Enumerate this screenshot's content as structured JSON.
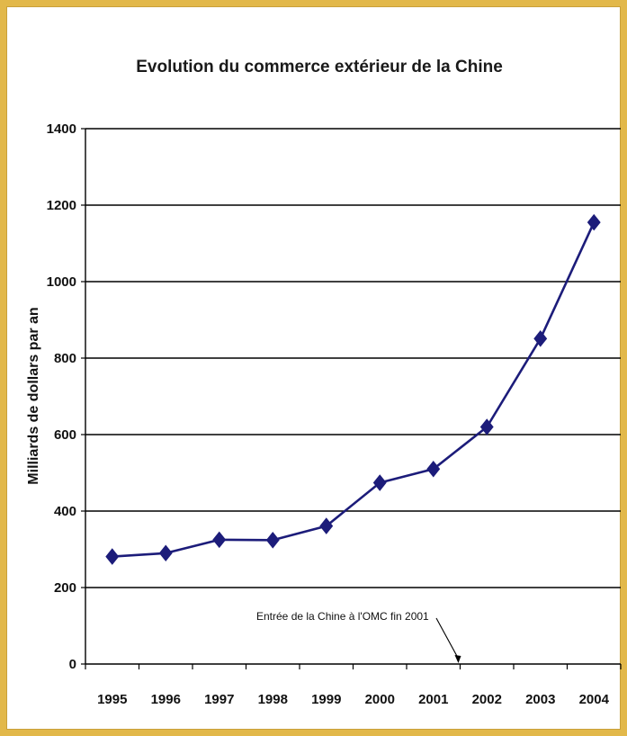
{
  "chart_data": {
    "type": "line",
    "title": "Evolution du commerce extérieur de la Chine",
    "xlabel": "",
    "ylabel": "Milliards de dollars par an",
    "categories": [
      "1995",
      "1996",
      "1997",
      "1998",
      "1999",
      "2000",
      "2001",
      "2002",
      "2003",
      "2004"
    ],
    "series": [
      {
        "values": [
          281,
          290,
          325,
          324,
          361,
          474,
          510,
          620,
          851,
          1155
        ],
        "color": "#1c1c7a",
        "marker": "diamond"
      }
    ],
    "ylim": [
      0,
      1400
    ],
    "yticks": [
      0,
      200,
      400,
      600,
      800,
      1000,
      1200,
      1400
    ],
    "grid": "horizontal",
    "legend": "none",
    "annotations": [
      {
        "text": "Entrée de la Chine à l'OMC fin 2001",
        "points_to": "end of 2001"
      }
    ]
  },
  "colors": {
    "frame": "#e2b84a",
    "line": "#1c1c7a",
    "grid": "#000000"
  }
}
